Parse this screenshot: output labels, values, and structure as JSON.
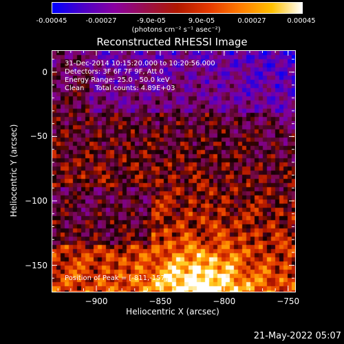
{
  "colorbar": {
    "ticks": [
      "-0.00045",
      "-0.00027",
      "-9.0e-05",
      "9.0e-05",
      "0.00027",
      "0.00045"
    ],
    "unit": "(photons cm⁻² s⁻¹ asec⁻²)",
    "range": [
      -0.00045,
      0.00045
    ]
  },
  "chart_data": {
    "type": "heatmap",
    "title": "Reconstructed RHESSI Image",
    "xlabel": "Heliocentric X (arcsec)",
    "ylabel": "Heliocentric Y (arcsec)",
    "xlim": [
      -935,
      -745
    ],
    "ylim": [
      -170,
      17
    ],
    "xticks": [
      -900,
      -850,
      -800,
      -750
    ],
    "xtick_labels": [
      "−900",
      "−850",
      "−800",
      "−750"
    ],
    "yticks": [
      0,
      -50,
      -100,
      -150
    ],
    "ytick_labels": [
      "0",
      "−50",
      "−100",
      "−150"
    ],
    "peak": [
      -811,
      -157
    ],
    "annotations": [
      "31-Dec-2014 10:15:20.000 to 10:20:56.000",
      "Detectors: 3F 6F 7F 9F, Att 0",
      "Energy Range: 25.0 - 50.0 keV",
      "Clean     Total counts: 4.89E+03"
    ],
    "peak_label": "Position of Peak = [-811,-157]"
  },
  "footer": {
    "date": "21-May-2022 05:07"
  }
}
